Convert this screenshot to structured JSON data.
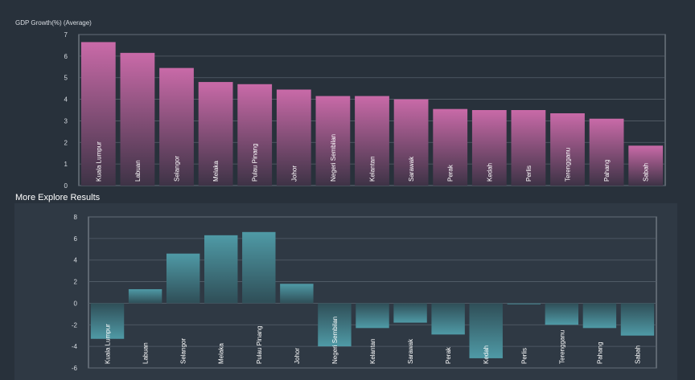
{
  "chart_data": [
    {
      "type": "bar",
      "title": "GDP Growth(%) (Average)",
      "categories": [
        "Kuala Lumpur",
        "Labuan",
        "Selangor",
        "Melaka",
        "Pulau Pinang",
        "Johor",
        "Negeri Sembilan",
        "Kelantan",
        "Sarawak",
        "Perak",
        "Kedah",
        "Perlis",
        "Terengganu",
        "Pahang",
        "Sabah"
      ],
      "values": [
        6.65,
        6.15,
        5.45,
        4.8,
        4.7,
        4.45,
        4.15,
        4.15,
        4.0,
        3.55,
        3.5,
        3.5,
        3.35,
        3.1,
        1.85
      ],
      "ylim": [
        0,
        7
      ],
      "yticks": [
        0,
        1,
        2,
        3,
        4,
        5,
        6,
        7
      ],
      "grid": true,
      "color": "#c2649f"
    },
    {
      "type": "bar",
      "title": "",
      "categories": [
        "Kuala Lumpur",
        "Labuan",
        "Selangor",
        "Melaka",
        "Pulau Pinang",
        "Johor",
        "Negeri Sembilan",
        "Kelantan",
        "Sarawak",
        "Perak",
        "Kedah",
        "Perlis",
        "Terengganu",
        "Pahang",
        "Sabah"
      ],
      "values": [
        -3.3,
        1.3,
        4.6,
        6.3,
        6.6,
        1.8,
        -4.0,
        -2.3,
        -1.8,
        -2.9,
        -5.1,
        -0.1,
        -2.0,
        -2.3,
        -3.0
      ],
      "ylim": [
        -6,
        8
      ],
      "yticks": [
        -6,
        -4,
        -2,
        0,
        2,
        4,
        6,
        8
      ],
      "grid": true,
      "color": "#4f9aa6"
    }
  ],
  "labels": {
    "top_title": "GDP Growth(%) (Average)",
    "section_heading": "More Explore Results"
  }
}
